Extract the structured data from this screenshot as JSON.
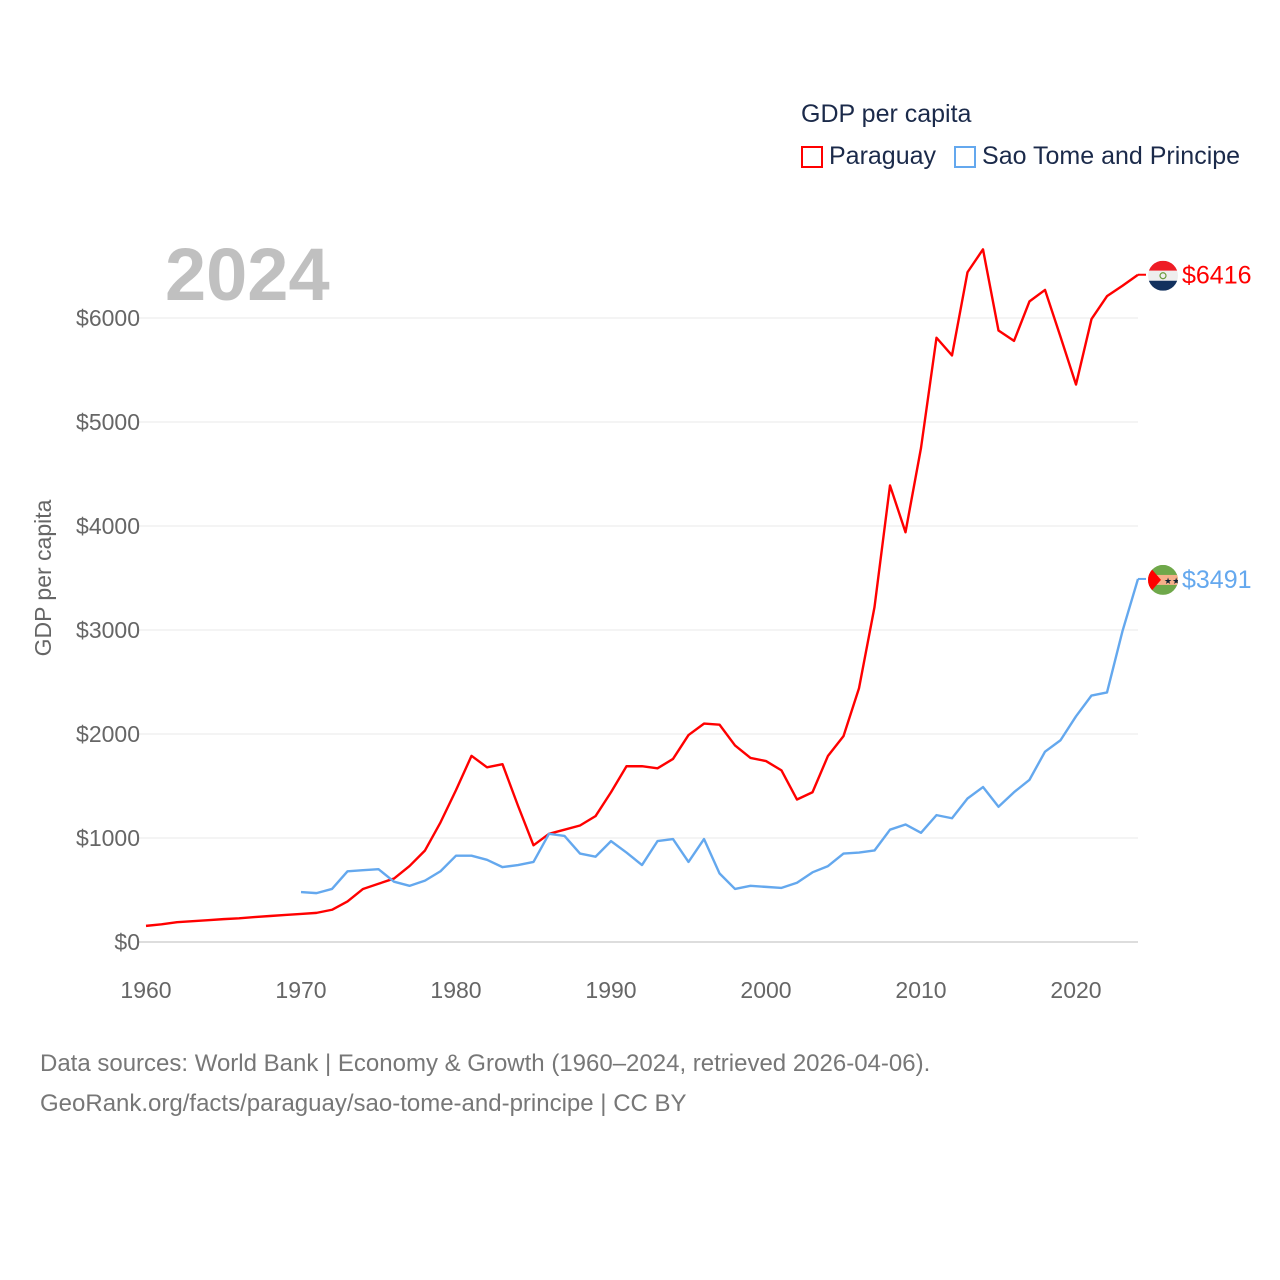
{
  "chart_data": {
    "type": "line",
    "title": "",
    "year_label": "2024",
    "xlabel": "",
    "ylabel": "GDP per capita",
    "xlim": [
      1960,
      2024
    ],
    "ylim": [
      0,
      6000
    ],
    "x_ticks": [
      "1960",
      "1970",
      "1980",
      "1990",
      "2000",
      "2010",
      "2020"
    ],
    "y_ticks": [
      "$0",
      "$1000",
      "$2000",
      "$3000",
      "$4000",
      "$5000",
      "$6000"
    ],
    "y_tick_values": [
      0,
      1000,
      2000,
      3000,
      4000,
      5000,
      6000
    ],
    "x_tick_values": [
      1960,
      1970,
      1980,
      1990,
      2000,
      2010,
      2020
    ],
    "grid": true,
    "legend": {
      "title": "GDP per capita",
      "placement": "top-right"
    },
    "series": [
      {
        "name": "Paraguay",
        "color": "#ff0000",
        "end_label": "$6416",
        "start_year": 1960,
        "values": [
          155,
          170,
          190,
          200,
          210,
          220,
          228,
          240,
          250,
          260,
          270,
          280,
          310,
          390,
          510,
          560,
          610,
          730,
          880,
          1150,
          1460,
          1790,
          1680,
          1710,
          1310,
          930,
          1040,
          1080,
          1120,
          1210,
          1440,
          1690,
          1690,
          1670,
          1760,
          1990,
          2100,
          2090,
          1890,
          1770,
          1740,
          1650,
          1370,
          1440,
          1790,
          1980,
          2440,
          3220,
          4390,
          3940,
          4750,
          5810,
          5640,
          6440,
          6660,
          5880,
          5780,
          6160,
          6270,
          5820,
          5360,
          5990,
          6210,
          6310,
          6416
        ]
      },
      {
        "name": "Sao Tome and Principe",
        "color": "#64a8ee",
        "end_label": "$3491",
        "start_year": 1970,
        "values": [
          480,
          470,
          510,
          680,
          690,
          700,
          580,
          540,
          590,
          680,
          830,
          830,
          790,
          720,
          740,
          770,
          1040,
          1020,
          850,
          820,
          970,
          860,
          740,
          970,
          990,
          770,
          990,
          660,
          510,
          540,
          530,
          520,
          570,
          670,
          730,
          850,
          860,
          880,
          1080,
          1130,
          1050,
          1220,
          1190,
          1380,
          1490,
          1300,
          1440,
          1560,
          1830,
          1940,
          2170,
          2370,
          2400,
          2990,
          3491
        ]
      }
    ]
  },
  "footer": {
    "line1": "Data sources: World Bank | Economy & Growth (1960–2024, retrieved 2026-04-06).",
    "line2": "GeoRank.org/facts/paraguay/sao-tome-and-principe | CC BY"
  }
}
